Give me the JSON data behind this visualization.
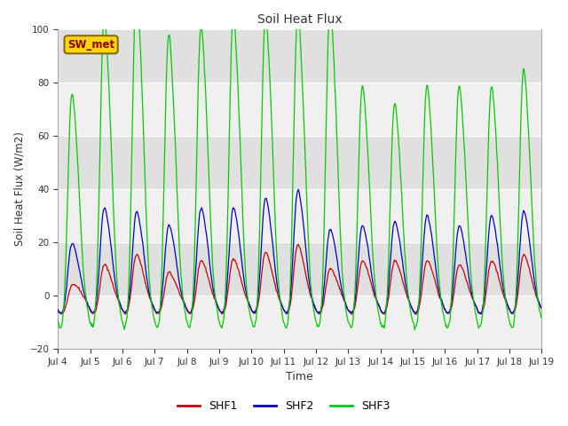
{
  "title": "Soil Heat Flux",
  "xlabel": "Time",
  "ylabel": "Soil Heat Flux (W/m2)",
  "ylim": [
    -20,
    100
  ],
  "yticks": [
    -20,
    0,
    20,
    40,
    60,
    80,
    100
  ],
  "x_tick_labels": [
    "Jul 4",
    "Jul 5",
    "Jul 6",
    "Jul 7",
    "Jul 8",
    "Jul 9",
    "Jul 10",
    "Jul 11",
    "Jul 12",
    "Jul 13",
    "Jul 14",
    "Jul 15",
    "Jul 16",
    "Jul 17",
    "Jul 18",
    "Jul 19"
  ],
  "shf1_color": "#cc0000",
  "shf2_color": "#0000cc",
  "shf3_color": "#00cc00",
  "fig_bg_color": "#ffffff",
  "plot_bg_color": "#e8e8e8",
  "band_light_color": "#f0f0f0",
  "band_dark_color": "#e0e0e0",
  "station_label": "SW_met",
  "station_label_color": "#8b0000",
  "station_box_color": "#ffd700",
  "legend_labels": [
    "SHF1",
    "SHF2",
    "SHF3"
  ],
  "n_days": 15,
  "shf3_day_amps": [
    60,
    82,
    91,
    77,
    79,
    82,
    82,
    83,
    85,
    62,
    57,
    62,
    62,
    62,
    67
  ],
  "shf2_day_amps": [
    16,
    26,
    25,
    21,
    26,
    26,
    29,
    31,
    20,
    21,
    22,
    24,
    21,
    24,
    25
  ],
  "shf1_day_amps": [
    4,
    10,
    13,
    8,
    11,
    12,
    14,
    16,
    9,
    11,
    11,
    11,
    10,
    11,
    13
  ],
  "shf1_peak2_amps": [
    3,
    7,
    9,
    5,
    8,
    8,
    9,
    11,
    6,
    8,
    8,
    8,
    7,
    8,
    9
  ],
  "shf2_peak2_amps": [
    12,
    20,
    19,
    16,
    20,
    20,
    22,
    24,
    15,
    16,
    17,
    18,
    16,
    18,
    19
  ],
  "shf3_peak2_amps": [
    45,
    62,
    68,
    58,
    60,
    62,
    62,
    63,
    64,
    47,
    43,
    47,
    47,
    47,
    50
  ]
}
